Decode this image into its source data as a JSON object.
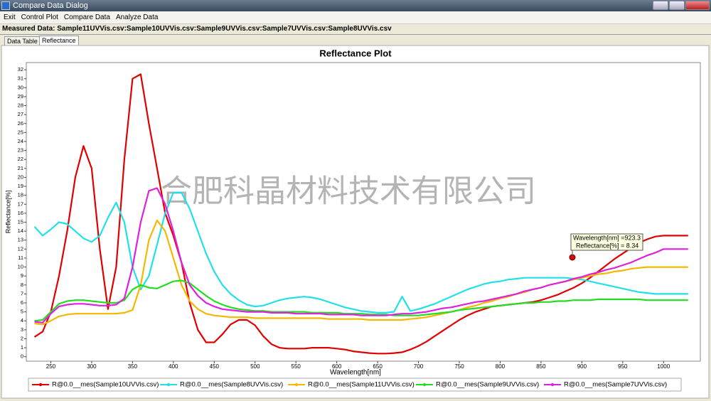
{
  "window": {
    "title": "Compare Data Dialog",
    "menu": [
      "Exit",
      "Control Plot",
      "Compare Data",
      "Analyze Data"
    ]
  },
  "measured_data": "Measured Data: Sample11UVVis.csv:Sample10UVVis.csv:Sample9UVVis.csv:Sample7UVVis.csv:Sample8UVVis.csv",
  "tabs": [
    "Data Table",
    "Reflectance"
  ],
  "chart_data": {
    "type": "line",
    "title": "Reflectance Plot",
    "x_label": "Wavelength[nm]",
    "y_label": "Reflectance[%]",
    "watermark": "合肥科晶材料技术有限公司",
    "tooltip": [
      "Wavelength[nm] =923.3",
      "Reflectance[%] = 8.34"
    ],
    "xlim": [
      220,
      1045
    ],
    "ylim": [
      -0.5,
      32.8
    ],
    "xticks": [
      250,
      300,
      350,
      400,
      450,
      500,
      550,
      600,
      650,
      700,
      750,
      800,
      850,
      900,
      950,
      1000
    ],
    "yticks": [
      0,
      1,
      2,
      3,
      4,
      5,
      6,
      7,
      8,
      9,
      10,
      11,
      12,
      13,
      14,
      15,
      16,
      17,
      18,
      19,
      20,
      21,
      22,
      23,
      24,
      25,
      26,
      27,
      28,
      29,
      30,
      31,
      32
    ],
    "grid": false,
    "legend": "bottom",
    "x": [
      230,
      240,
      250,
      260,
      270,
      280,
      290,
      300,
      310,
      320,
      330,
      340,
      350,
      360,
      370,
      380,
      390,
      400,
      410,
      420,
      430,
      440,
      450,
      460,
      470,
      480,
      490,
      500,
      510,
      520,
      530,
      540,
      550,
      560,
      570,
      580,
      590,
      600,
      610,
      620,
      630,
      640,
      650,
      660,
      670,
      680,
      690,
      700,
      710,
      720,
      730,
      740,
      750,
      760,
      770,
      780,
      790,
      800,
      810,
      820,
      830,
      840,
      850,
      860,
      870,
      880,
      890,
      900,
      910,
      920,
      930,
      940,
      950,
      960,
      970,
      980,
      990,
      1000,
      1010,
      1020,
      1030
    ],
    "series": [
      {
        "name": "R@0.0__mes(Sample10UVVis.csv)",
        "color": "#e00000",
        "values": [
          2.2,
          2.8,
          5,
          9,
          14,
          20,
          23.5,
          21,
          12,
          5.3,
          10,
          22,
          31,
          31.5,
          26,
          21,
          16,
          13.5,
          10.5,
          6,
          3,
          1.6,
          1.6,
          2.5,
          3.6,
          4.1,
          4.1,
          3.5,
          2.3,
          1.4,
          1.0,
          0.9,
          0.9,
          0.9,
          1.0,
          1.0,
          1.0,
          0.9,
          0.8,
          0.6,
          0.5,
          0.4,
          0.35,
          0.35,
          0.4,
          0.5,
          0.8,
          1.2,
          1.7,
          2.3,
          2.9,
          3.5,
          4.1,
          4.6,
          5.0,
          5.3,
          5.6,
          5.7,
          5.8,
          5.9,
          6.0,
          6.1,
          6.3,
          6.6,
          6.9,
          7.3,
          7.7,
          8.2,
          8.8,
          9.5,
          10.2,
          10.9,
          11.5,
          12.1,
          12.7,
          13.1,
          13.4,
          13.5,
          13.5,
          13.5,
          13.5
        ]
      },
      {
        "name": "R@0.0__mes(Sample8UVVis.csv)",
        "color": "#22e0e8",
        "values": [
          14.5,
          13.5,
          14.2,
          15,
          14.8,
          14,
          13.2,
          12.8,
          13.5,
          15.5,
          17.2,
          15,
          10,
          7.5,
          9,
          12.5,
          16,
          18.3,
          18.3,
          16.5,
          14,
          11.5,
          9.5,
          8,
          7,
          6.3,
          5.8,
          5.6,
          5.7,
          6,
          6.3,
          6.5,
          6.6,
          6.7,
          6.6,
          6.4,
          6.1,
          5.8,
          5.5,
          5.3,
          5.1,
          5.0,
          4.9,
          4.9,
          5.0,
          6.7,
          5.1,
          5.3,
          5.6,
          5.9,
          6.3,
          6.7,
          7.1,
          7.5,
          7.8,
          8.1,
          8.3,
          8.4,
          8.6,
          8.7,
          8.8,
          8.8,
          8.8,
          8.8,
          8.8,
          8.8,
          8.7,
          8.6,
          8.4,
          8.2,
          8.0,
          7.8,
          7.6,
          7.4,
          7.2,
          7.1,
          7.0,
          7.0,
          7.0,
          7.0,
          7.0
        ]
      },
      {
        "name": "R@0.0__mes(Sample11UVVis.csv)",
        "color": "#f5b800",
        "values": [
          3.7,
          3.6,
          4.0,
          4.5,
          4.7,
          4.8,
          4.8,
          4.8,
          4.8,
          4.8,
          4.8,
          4.9,
          5.2,
          8,
          13,
          15.2,
          14,
          11,
          8,
          6.2,
          5.3,
          4.8,
          4.6,
          4.5,
          4.4,
          4.4,
          4.4,
          4.3,
          4.3,
          4.3,
          4.3,
          4.3,
          4.3,
          4.3,
          4.3,
          4.3,
          4.2,
          4.2,
          4.2,
          4.2,
          4.2,
          4.1,
          4.1,
          4.1,
          4.1,
          4.1,
          4.2,
          4.3,
          4.4,
          4.6,
          4.8,
          5.0,
          5.2,
          5.5,
          5.7,
          6.0,
          6.2,
          6.5,
          6.7,
          7.0,
          7.2,
          7.5,
          7.7,
          8.0,
          8.2,
          8.4,
          8.6,
          8.8,
          9.0,
          9.2,
          9.3,
          9.5,
          9.6,
          9.8,
          9.9,
          10.0,
          10.0,
          10.0,
          10.0,
          10.0,
          10.0
        ]
      },
      {
        "name": "R@0.0__mes(Sample9UVVis.csv)",
        "color": "#22dd22",
        "values": [
          4.0,
          4.1,
          5.0,
          5.9,
          6.2,
          6.3,
          6.3,
          6.2,
          6.1,
          6.0,
          6.0,
          6.3,
          7.5,
          8.0,
          7.7,
          7.6,
          8.0,
          8.4,
          8.5,
          8.2,
          7.5,
          6.8,
          6.2,
          5.8,
          5.5,
          5.3,
          5.2,
          5.1,
          5.1,
          5.0,
          5.0,
          5.0,
          5.0,
          5.0,
          4.9,
          4.9,
          4.9,
          4.9,
          4.8,
          4.8,
          4.8,
          4.7,
          4.7,
          4.7,
          4.6,
          4.6,
          4.6,
          4.6,
          4.7,
          4.8,
          4.9,
          5.0,
          5.2,
          5.3,
          5.4,
          5.5,
          5.6,
          5.7,
          5.8,
          5.9,
          6.0,
          6.0,
          6.1,
          6.1,
          6.2,
          6.2,
          6.3,
          6.3,
          6.3,
          6.4,
          6.4,
          6.4,
          6.4,
          6.4,
          6.4,
          6.3,
          6.3,
          6.3,
          6.3,
          6.3,
          6.3
        ]
      },
      {
        "name": "R@0.0__mes(Sample7UVVis.csv)",
        "color": "#dd22dd",
        "values": [
          3.9,
          3.8,
          4.8,
          5.6,
          5.8,
          5.9,
          5.9,
          5.8,
          5.7,
          5.7,
          5.8,
          6.5,
          10,
          15,
          18.5,
          18.8,
          17,
          14,
          10.5,
          8,
          6.8,
          6.0,
          5.6,
          5.3,
          5.2,
          5.1,
          5.0,
          5.0,
          5.0,
          4.9,
          4.9,
          4.9,
          4.8,
          4.8,
          4.8,
          4.8,
          4.7,
          4.7,
          4.7,
          4.7,
          4.6,
          4.6,
          4.6,
          4.6,
          4.7,
          4.8,
          4.8,
          4.9,
          5.0,
          5.2,
          5.4,
          5.5,
          5.7,
          5.9,
          6.1,
          6.2,
          6.4,
          6.6,
          6.8,
          7.0,
          7.3,
          7.5,
          7.7,
          8.0,
          8.2,
          8.4,
          8.7,
          8.9,
          9.2,
          9.4,
          9.7,
          9.9,
          10.2,
          10.5,
          10.9,
          11.3,
          11.6,
          12.0,
          12.0,
          12.0,
          12.0
        ]
      }
    ]
  }
}
